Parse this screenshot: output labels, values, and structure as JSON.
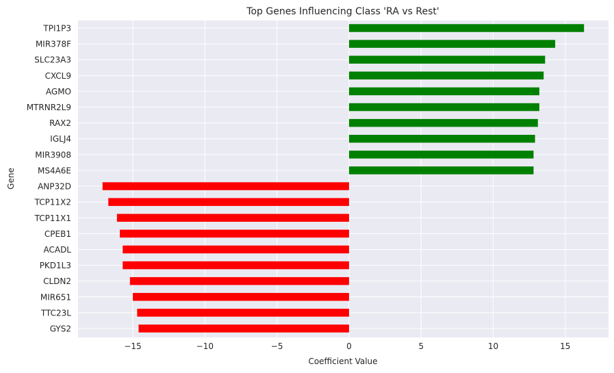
{
  "chart_data": {
    "type": "bar",
    "orientation": "horizontal",
    "title": "Top Genes Influencing Class 'RA vs Rest'",
    "xlabel": "Coefficient Value",
    "ylabel": "Gene",
    "xlim": [
      -18.8,
      18.0
    ],
    "xticks": [
      -15,
      -10,
      -5,
      0,
      5,
      10,
      15
    ],
    "xtick_labels": [
      "−15",
      "−10",
      "−5",
      "0",
      "5",
      "10",
      "15"
    ],
    "grid": true,
    "positive_color": "#008000",
    "negative_color": "#ff0000",
    "background_color": "#eaeaf2",
    "categories": [
      "TPI1P3",
      "MIR378F",
      "SLC23A3",
      "CXCL9",
      "AGMO",
      "MTRNR2L9",
      "RAX2",
      "IGLJ4",
      "MIR3908",
      "MS4A6E",
      "ANP32D",
      "TCP11X2",
      "TCP11X1",
      "CPEB1",
      "ACADL",
      "PKD1L3",
      "CLDN2",
      "MIR651",
      "TTC23L",
      "GYS2"
    ],
    "values": [
      16.3,
      14.3,
      13.6,
      13.5,
      13.2,
      13.2,
      13.1,
      12.9,
      12.8,
      12.8,
      -17.1,
      -16.7,
      -16.1,
      -15.9,
      -15.7,
      -15.7,
      -15.2,
      -15.0,
      -14.7,
      -14.6
    ]
  }
}
